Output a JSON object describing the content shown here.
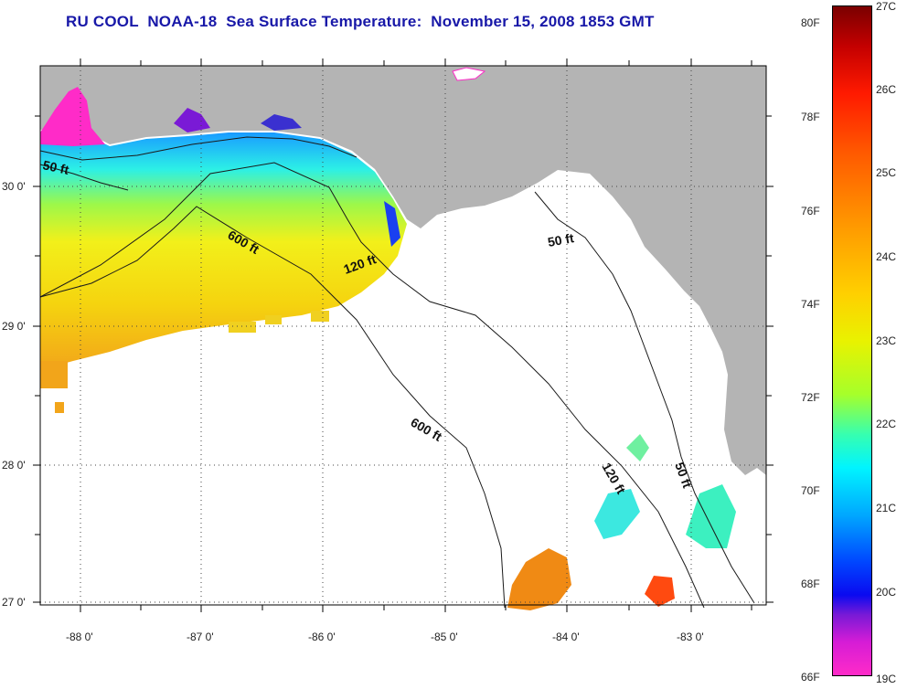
{
  "title": "RU COOL  NOAA-18  Sea Surface Temperature:  November 15, 2008 1853 GMT",
  "map": {
    "lon_labels": [
      "-88 0'",
      "-87 0'",
      "-86 0'",
      "-85 0'",
      "-84 0'",
      "-83 0'"
    ],
    "lat_labels": [
      "30 0'",
      "29 0'",
      "28 0'",
      "27 0'"
    ],
    "contour_labels": [
      "50 ft",
      "600 ft",
      "120 ft",
      "50 ft",
      "600 ft",
      "120 ft",
      "50 ft"
    ],
    "colors": {
      "land": "#b4b4b4",
      "no_data": "#ffffff",
      "contour": "#1a1a1a",
      "frame": "#000000"
    }
  },
  "colorbar": {
    "fahrenheit_labels": [
      "80F",
      "78F",
      "76F",
      "74F",
      "72F",
      "70F",
      "68F",
      "66F"
    ],
    "celsius_labels": [
      "27C",
      "26C",
      "25C",
      "24C",
      "23C",
      "22C",
      "21C",
      "20C",
      "19C"
    ]
  }
}
